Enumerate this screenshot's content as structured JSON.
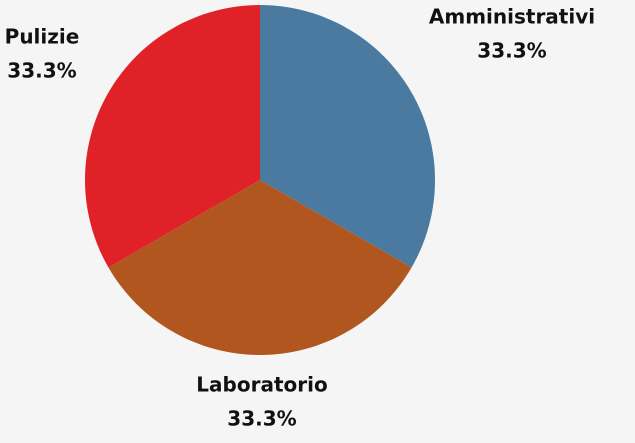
{
  "chart_data": {
    "type": "pie",
    "categories": [
      "Amministrativi",
      "Laboratorio",
      "Pulizie"
    ],
    "values": [
      33.3,
      33.3,
      33.3
    ],
    "value_labels": [
      "33.3%",
      "33.3%",
      "33.3%"
    ],
    "colors": [
      "#4a7aa0",
      "#b0561e",
      "#e02228"
    ]
  }
}
